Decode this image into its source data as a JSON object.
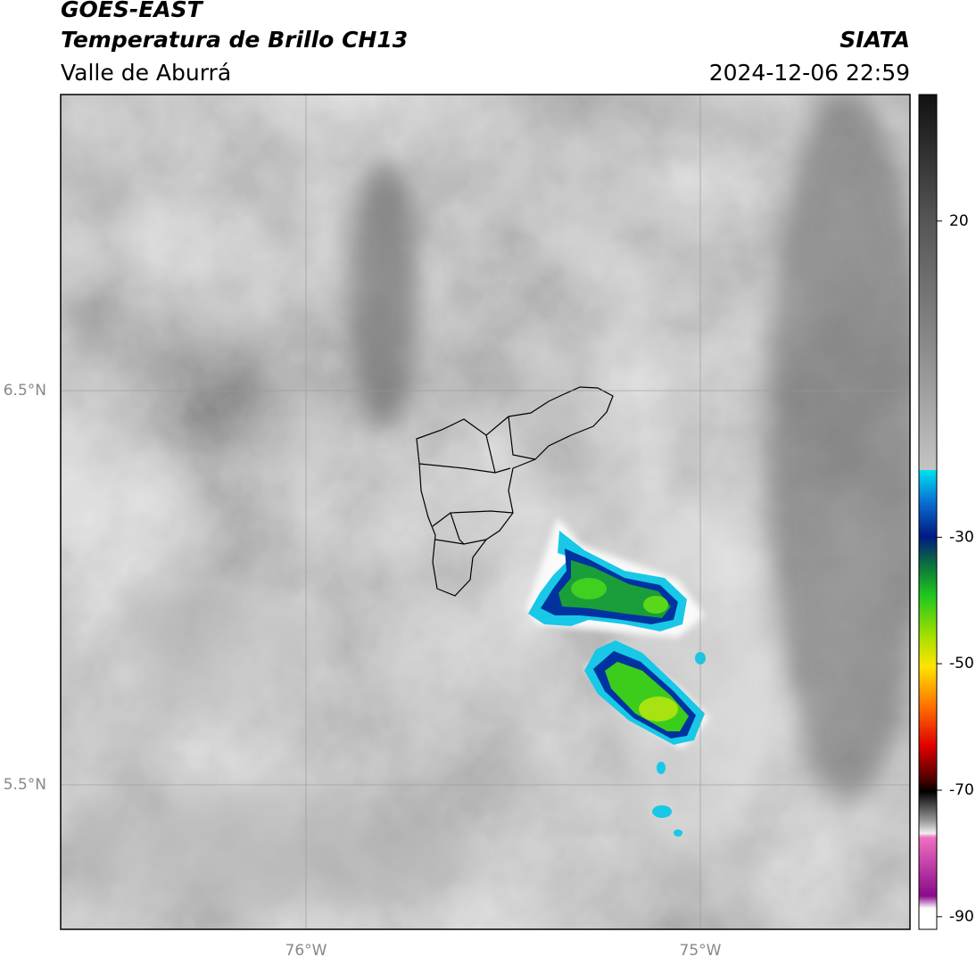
{
  "header": {
    "title": "GOES-EAST",
    "subtitle": "Temperatura de Brillo CH13",
    "region": "Valle de Aburrá",
    "source": "SIATA",
    "datetime": "2024-12-06 22:59"
  },
  "map": {
    "lat_labels": [
      "6.5°N",
      "5.5°N"
    ],
    "lon_labels": [
      "76°W",
      "75°W"
    ]
  },
  "colorbar": {
    "lim": [
      -92,
      40
    ],
    "ticks": [
      20,
      -30,
      -50,
      -70,
      -90
    ]
  }
}
